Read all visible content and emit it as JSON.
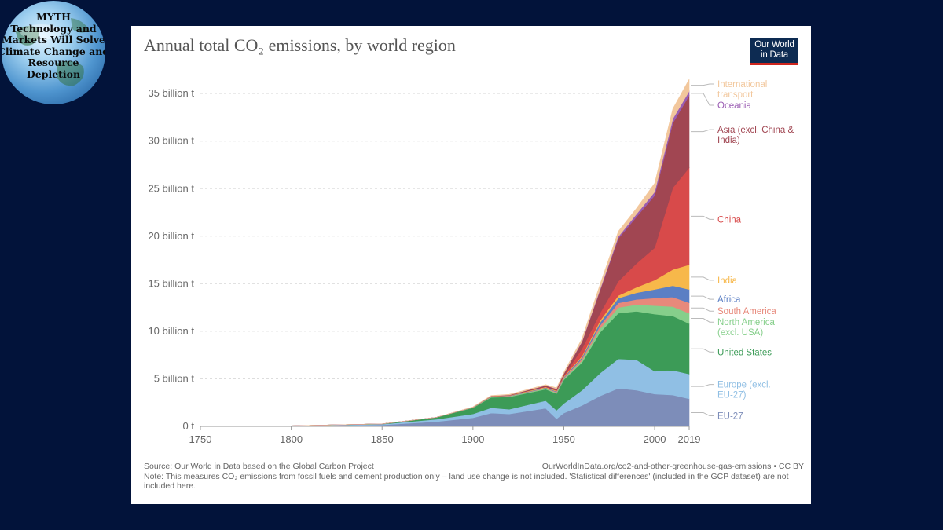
{
  "badge": {
    "lines": [
      "MYTH",
      "Technology and",
      "Markets Will Solve",
      "Climate Change and",
      "Resource",
      "Depletion"
    ]
  },
  "logo": {
    "line1": "Our World",
    "line2": "in Data"
  },
  "footer": {
    "source": "Source: Our World in Data based on the Global Carbon Project",
    "url": "OurWorldInData.org/co2-and-other-greenhouse-gas-emissions • CC BY",
    "note": "Note: This measures CO₂ emissions from fossil fuels and cement production only – land use change is not included. 'Statistical differences' (included in the GCP dataset) are not included here."
  },
  "chart_data": {
    "type": "area",
    "stacked": true,
    "title": "Annual total CO₂ emissions, by world region",
    "xlim": [
      1750,
      2019
    ],
    "ylim": [
      0,
      36.5
    ],
    "unit": "billion t",
    "grid": true,
    "x_ticks": [
      {
        "value": 1750,
        "label": "1750"
      },
      {
        "value": 1800,
        "label": "1800"
      },
      {
        "value": 1850,
        "label": "1850"
      },
      {
        "value": 1900,
        "label": "1900"
      },
      {
        "value": 1950,
        "label": "1950"
      },
      {
        "value": 2000,
        "label": "2000"
      },
      {
        "value": 2019,
        "label": "2019"
      }
    ],
    "y_ticks": [
      {
        "value": 0,
        "label": "0 t"
      },
      {
        "value": 5,
        "label": "5 billion t"
      },
      {
        "value": 10,
        "label": "10 billion t"
      },
      {
        "value": 15,
        "label": "15 billion t"
      },
      {
        "value": 20,
        "label": "20 billion t"
      },
      {
        "value": 25,
        "label": "25 billion t"
      },
      {
        "value": 30,
        "label": "30 billion t"
      },
      {
        "value": 35,
        "label": "35 billion t"
      }
    ],
    "x": [
      1750,
      1800,
      1850,
      1880,
      1900,
      1910,
      1920,
      1930,
      1940,
      1946,
      1950,
      1960,
      1970,
      1980,
      1990,
      2000,
      2010,
      2019
    ],
    "series": [
      {
        "name": "EU-27",
        "color": "#7d8db9",
        "values": [
          0.01,
          0.03,
          0.15,
          0.5,
          0.9,
          1.4,
          1.3,
          1.6,
          1.9,
          0.8,
          1.4,
          2.2,
          3.2,
          4.0,
          3.8,
          3.4,
          3.3,
          2.9
        ]
      },
      {
        "name": "Europe (excl. EU-27)",
        "color": "#90bfe4",
        "values": [
          0.0,
          0.03,
          0.08,
          0.25,
          0.4,
          0.55,
          0.5,
          0.65,
          0.8,
          0.9,
          1.0,
          1.6,
          2.4,
          3.1,
          3.2,
          2.4,
          2.6,
          2.6
        ]
      },
      {
        "name": "United States",
        "color": "#3c9b57",
        "values": [
          0.0,
          0.0,
          0.03,
          0.2,
          0.65,
          1.1,
          1.3,
          1.25,
          1.2,
          1.75,
          2.5,
          2.9,
          4.3,
          4.8,
          5.1,
          6.0,
          5.7,
          5.3
        ]
      },
      {
        "name": "North America (excl. USA)",
        "color": "#86cf8b",
        "values": [
          0.0,
          0.0,
          0.0,
          0.01,
          0.03,
          0.05,
          0.06,
          0.07,
          0.08,
          0.1,
          0.12,
          0.22,
          0.4,
          0.6,
          0.7,
          0.9,
          1.0,
          1.1
        ]
      },
      {
        "name": "South America",
        "color": "#e7897b",
        "values": [
          0.0,
          0.0,
          0.0,
          0.0,
          0.01,
          0.02,
          0.03,
          0.04,
          0.05,
          0.07,
          0.08,
          0.2,
          0.33,
          0.48,
          0.55,
          0.8,
          1.0,
          1.1
        ]
      },
      {
        "name": "Africa",
        "color": "#5b7fc4",
        "values": [
          0.0,
          0.0,
          0.0,
          0.0,
          0.01,
          0.02,
          0.03,
          0.04,
          0.05,
          0.06,
          0.08,
          0.15,
          0.3,
          0.5,
          0.7,
          0.9,
          1.2,
          1.4
        ]
      },
      {
        "name": "India",
        "color": "#f7b84a",
        "values": [
          0.0,
          0.0,
          0.0,
          0.0,
          0.02,
          0.03,
          0.04,
          0.05,
          0.06,
          0.07,
          0.07,
          0.12,
          0.2,
          0.28,
          0.58,
          0.98,
          1.7,
          2.6
        ]
      },
      {
        "name": "China",
        "color": "#d84a4a",
        "values": [
          0.0,
          0.0,
          0.0,
          0.0,
          0.0,
          0.0,
          0.01,
          0.02,
          0.03,
          0.04,
          0.08,
          0.78,
          0.8,
          1.5,
          2.5,
          3.4,
          8.6,
          10.2
        ]
      },
      {
        "name": "Asia (excl. China & India)",
        "color": "#a14652",
        "values": [
          0.0,
          0.0,
          0.0,
          0.0,
          0.01,
          0.02,
          0.03,
          0.08,
          0.12,
          0.14,
          0.2,
          0.7,
          2.4,
          4.5,
          4.9,
          5.5,
          6.8,
          7.6
        ]
      },
      {
        "name": "Oceania",
        "color": "#9a5cb3",
        "values": [
          0.0,
          0.0,
          0.0,
          0.0,
          0.0,
          0.01,
          0.01,
          0.01,
          0.02,
          0.02,
          0.03,
          0.06,
          0.12,
          0.2,
          0.3,
          0.38,
          0.45,
          0.45
        ]
      },
      {
        "name": "International transport",
        "color": "#f2c79c",
        "values": [
          0.0,
          0.0,
          0.0,
          0.0,
          0.02,
          0.05,
          0.06,
          0.07,
          0.08,
          0.1,
          0.12,
          0.3,
          0.52,
          0.55,
          0.6,
          0.9,
          1.05,
          1.25
        ]
      }
    ],
    "legend": [
      {
        "series": "International transport",
        "lines": [
          "International",
          "transport"
        ]
      },
      {
        "series": "Oceania",
        "lines": [
          "Oceania"
        ]
      },
      {
        "series": "Asia (excl. China & India)",
        "lines": [
          "Asia (excl. China &",
          "India)"
        ]
      },
      {
        "series": "China",
        "lines": [
          "China"
        ]
      },
      {
        "series": "India",
        "lines": [
          "India"
        ]
      },
      {
        "series": "Africa",
        "lines": [
          "Africa"
        ]
      },
      {
        "series": "South America",
        "lines": [
          "South America"
        ]
      },
      {
        "series": "North America (excl. USA)",
        "lines": [
          "North America",
          "(excl. USA)"
        ]
      },
      {
        "series": "United States",
        "lines": [
          "United States"
        ]
      },
      {
        "series": "Europe (excl. EU-27)",
        "lines": [
          "Europe (excl.",
          "EU-27)"
        ]
      },
      {
        "series": "EU-27",
        "lines": [
          "EU-27"
        ]
      }
    ]
  }
}
